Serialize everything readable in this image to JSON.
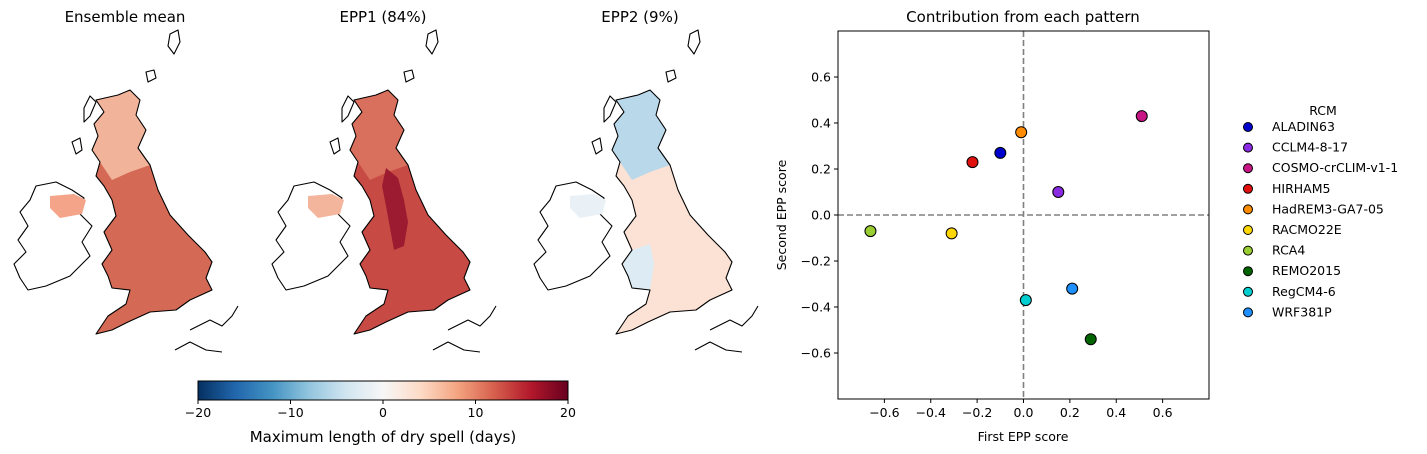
{
  "chart_data": [
    {
      "type": "heatmap",
      "panel": "map-ensemble-mean",
      "title": "Ensemble mean",
      "fill_description_colors": {
        "gb": "#d46a55",
        "gb_north": "#f2b39b",
        "ni": "#f4a488"
      }
    },
    {
      "type": "heatmap",
      "panel": "map-epp1",
      "title": "EPP1 (84%)",
      "fill_description_colors": {
        "gb": "#c84a45",
        "gb_north": "#d9705d",
        "ni": "#f3b59c",
        "spine": "#9c1b30"
      }
    },
    {
      "type": "heatmap",
      "panel": "map-epp2",
      "title": "EPP2 (9%)",
      "fill_description_colors": {
        "gb": "#fbe2d4",
        "gb_north": "#b9d8ea",
        "ni": "#e9f1f6",
        "wales": "#dcebf4"
      }
    },
    {
      "type": "colorbar",
      "label": "Maximum length of dry spell (days)",
      "range": [
        -20,
        20
      ],
      "ticks": [
        -20,
        -10,
        0,
        10,
        20
      ],
      "tick_labels": [
        "−20",
        "−10",
        "0",
        "10",
        "20"
      ],
      "colormap": [
        "#053061",
        "#2166ac",
        "#4393c3",
        "#92c5de",
        "#d1e5f0",
        "#f7f7f7",
        "#fddbc7",
        "#f4a582",
        "#d6604d",
        "#b2182b",
        "#67001f"
      ]
    },
    {
      "type": "scatter",
      "title": "Contribution from each pattern",
      "xlabel": "First EPP score",
      "ylabel": "Second EPP score",
      "xlim": [
        -0.8,
        0.8
      ],
      "ylim": [
        -0.8,
        0.8
      ],
      "xticks": [
        -0.6,
        -0.4,
        -0.2,
        0.0,
        0.2,
        0.4,
        0.6
      ],
      "yticks": [
        -0.6,
        -0.4,
        -0.2,
        0.0,
        0.2,
        0.4,
        0.6
      ],
      "xtick_labels": [
        "−0.6",
        "−0.4",
        "−0.2",
        "0.0",
        "0.2",
        "0.4",
        "0.6"
      ],
      "ytick_labels": [
        "−0.6",
        "−0.4",
        "−0.2",
        "0.0",
        "0.2",
        "0.4",
        "0.6"
      ],
      "reference_lines": {
        "x": 0,
        "y": 0,
        "style": "dashed",
        "color": "#808080"
      },
      "legend_title": "RCM",
      "legend_position": "right",
      "series": [
        {
          "name": "ALADIN63",
          "color": "#0000cd",
          "x": -0.1,
          "y": 0.27
        },
        {
          "name": "CCLM4-8-17",
          "color": "#8a2be2",
          "x": 0.15,
          "y": 0.1
        },
        {
          "name": "COSMO-crCLIM-v1-1",
          "color": "#c71585",
          "x": 0.51,
          "y": 0.43
        },
        {
          "name": "HIRHAM5",
          "color": "#e0100f",
          "x": -0.22,
          "y": 0.23
        },
        {
          "name": "HadREM3-GA7-05",
          "color": "#ff8c00",
          "x": -0.01,
          "y": 0.36
        },
        {
          "name": "RACMO22E",
          "color": "#ffd700",
          "x": -0.31,
          "y": -0.08
        },
        {
          "name": "RCA4",
          "color": "#9acd32",
          "x": -0.66,
          "y": -0.07
        },
        {
          "name": "REMO2015",
          "color": "#006400",
          "x": 0.29,
          "y": -0.54
        },
        {
          "name": "RegCM4-6",
          "color": "#00ced1",
          "x": 0.01,
          "y": -0.37
        },
        {
          "name": "WRF381P",
          "color": "#1e90ff",
          "x": 0.21,
          "y": -0.32
        }
      ]
    }
  ]
}
